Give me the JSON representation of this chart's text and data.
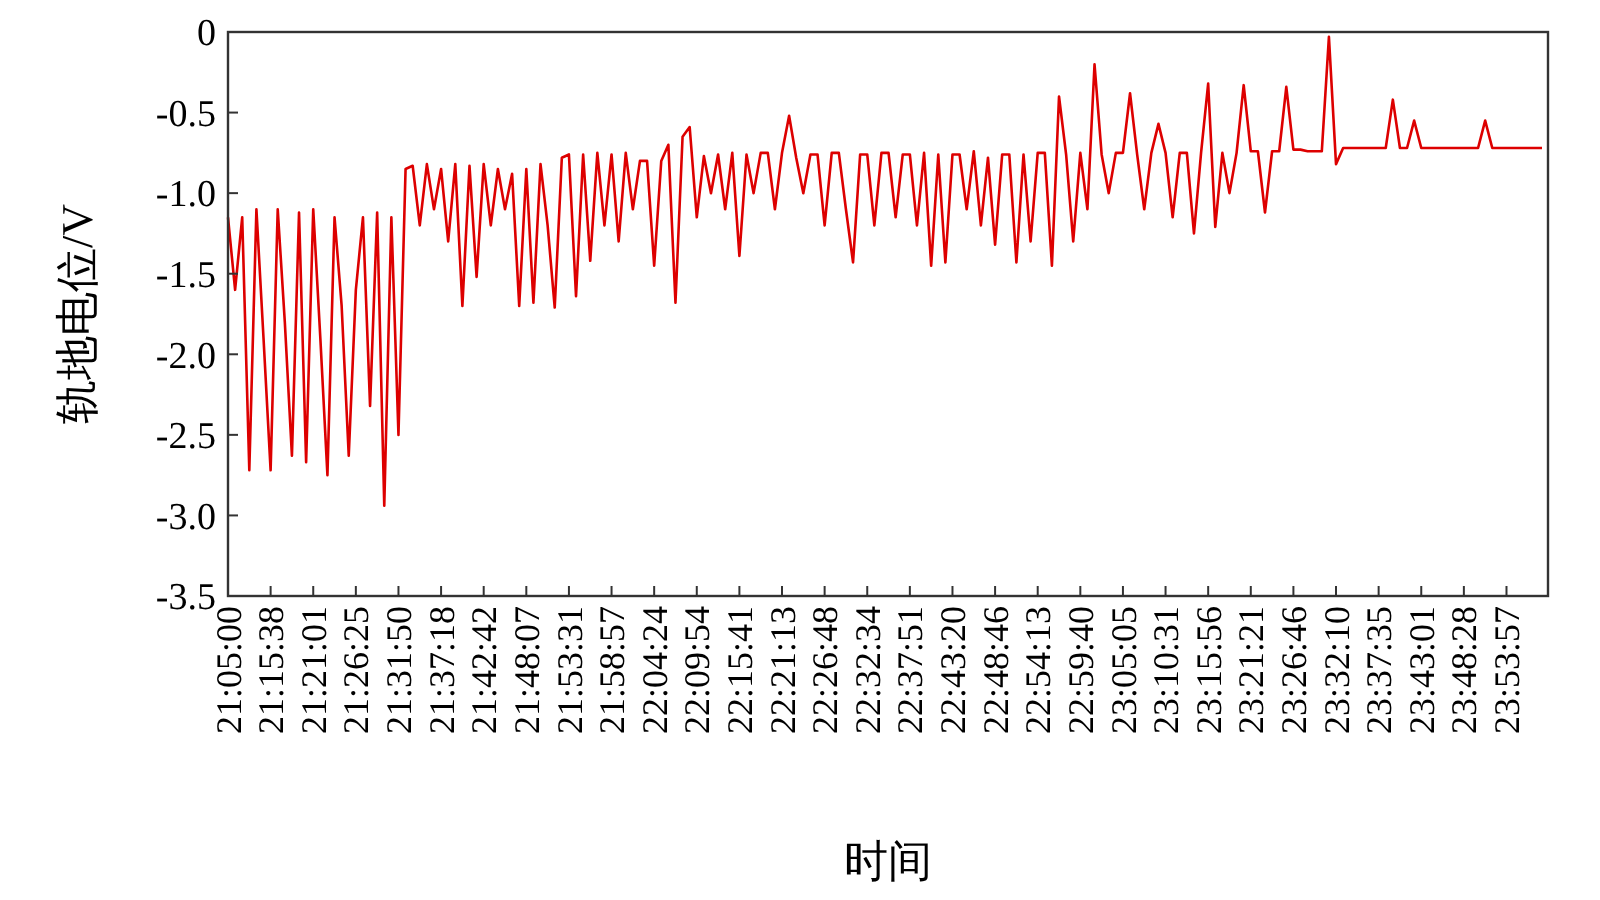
{
  "chart_data": {
    "type": "line",
    "xlabel": "时间",
    "ylabel": "轨地电位/V",
    "grid": false,
    "marker": "none",
    "line_style": "solid",
    "ylim": [
      -3.5,
      0
    ],
    "yticks": [
      0,
      -0.5,
      {
        "value": -1,
        "label": "-1.0"
      },
      -1.5,
      {
        "value": -2,
        "label": "-2.0"
      },
      -2.5,
      {
        "value": -3,
        "label": "-3.0"
      },
      -3.5
    ],
    "categories": [
      "21:05:00",
      null,
      null,
      null,
      null,
      null,
      "21:15:38",
      null,
      null,
      null,
      null,
      null,
      "21:21:01",
      null,
      null,
      null,
      null,
      null,
      "21:26:25",
      null,
      null,
      null,
      null,
      null,
      "21:31:50",
      null,
      null,
      null,
      null,
      null,
      "21:37:18",
      null,
      null,
      null,
      null,
      null,
      "21:42:42",
      null,
      null,
      null,
      null,
      null,
      "21:48:07",
      null,
      null,
      null,
      null,
      null,
      "21:53:31",
      null,
      null,
      null,
      null,
      null,
      "21:58:57",
      null,
      null,
      null,
      null,
      null,
      "22:04:24",
      null,
      null,
      null,
      null,
      null,
      "22:09:54",
      null,
      null,
      null,
      null,
      null,
      "22:15:41",
      null,
      null,
      null,
      null,
      null,
      "22:21:13",
      null,
      null,
      null,
      null,
      null,
      "22:26:48",
      null,
      null,
      null,
      null,
      null,
      "22:32:34",
      null,
      null,
      null,
      null,
      null,
      "22:37:51",
      null,
      null,
      null,
      null,
      null,
      "22:43:20",
      null,
      null,
      null,
      null,
      null,
      "22:48:46",
      null,
      null,
      null,
      null,
      null,
      "22:54:13",
      null,
      null,
      null,
      null,
      null,
      "22:59:40",
      null,
      null,
      null,
      null,
      null,
      "23:05:05",
      null,
      null,
      null,
      null,
      null,
      "23:10:31",
      null,
      null,
      null,
      null,
      null,
      "23:15:56",
      null,
      null,
      null,
      null,
      null,
      "23:21:21",
      null,
      null,
      null,
      null,
      null,
      "23:26:46",
      null,
      null,
      null,
      null,
      null,
      "23:32:10",
      null,
      null,
      null,
      null,
      null,
      "23:37:35",
      null,
      null,
      null,
      null,
      null,
      "23:43:01",
      null,
      null,
      null,
      null,
      null,
      "23:48:28",
      null,
      null,
      null,
      null,
      null,
      "23:53:57",
      null,
      null,
      null,
      null,
      null
    ],
    "series": [
      {
        "color": "#dd0000",
        "values": [
          -1.15,
          -1.6,
          -1.15,
          -2.72,
          -1.1,
          -1.9,
          -2.72,
          -1.1,
          -1.8,
          -2.63,
          -1.12,
          -2.67,
          -1.1,
          -1.9,
          -2.75,
          -1.15,
          -1.7,
          -2.63,
          -1.6,
          -1.15,
          -2.32,
          -1.12,
          -2.94,
          -1.15,
          -2.5,
          -0.85,
          -0.83,
          -1.2,
          -0.82,
          -1.1,
          -0.85,
          -1.3,
          -0.82,
          -1.7,
          -0.83,
          -1.52,
          -0.82,
          -1.2,
          -0.85,
          -1.1,
          -0.88,
          -1.7,
          -0.85,
          -1.68,
          -0.82,
          -1.2,
          -1.71,
          -0.78,
          -0.76,
          -1.64,
          -0.76,
          -1.42,
          -0.75,
          -1.2,
          -0.76,
          -1.3,
          -0.75,
          -1.1,
          -0.8,
          -0.8,
          -1.45,
          -0.8,
          -0.7,
          -1.68,
          -0.65,
          -0.59,
          -1.15,
          -0.77,
          -1.0,
          -0.76,
          -1.1,
          -0.75,
          -1.39,
          -0.76,
          -1.0,
          -0.75,
          -0.75,
          -1.1,
          -0.75,
          -0.52,
          -0.78,
          -1.0,
          -0.76,
          -0.76,
          -1.2,
          -0.75,
          -0.75,
          -1.1,
          -1.43,
          -0.76,
          -0.76,
          -1.2,
          -0.75,
          -0.75,
          -1.15,
          -0.76,
          -0.76,
          -1.2,
          -0.75,
          -1.45,
          -0.76,
          -1.43,
          -0.76,
          -0.76,
          -1.1,
          -0.74,
          -1.2,
          -0.78,
          -1.32,
          -0.76,
          -0.76,
          -1.43,
          -0.76,
          -1.3,
          -0.75,
          -0.75,
          -1.45,
          -0.4,
          -0.76,
          -1.3,
          -0.75,
          -1.1,
          -0.2,
          -0.76,
          -1.0,
          -0.75,
          -0.75,
          -0.38,
          -0.76,
          -1.1,
          -0.75,
          -0.57,
          -0.75,
          -1.15,
          -0.75,
          -0.75,
          -1.25,
          -0.75,
          -0.32,
          -1.21,
          -0.75,
          -1.0,
          -0.75,
          -0.33,
          -0.74,
          -0.74,
          -1.12,
          -0.74,
          -0.74,
          -0.34,
          -0.73,
          -0.73,
          -0.74,
          -0.74,
          -0.74,
          -0.03,
          -0.82,
          -0.72,
          -0.72,
          -0.72,
          -0.72,
          -0.72,
          -0.72,
          -0.72,
          -0.42,
          -0.72,
          -0.72,
          -0.55,
          -0.72,
          -0.72,
          -0.72,
          -0.72,
          -0.72,
          -0.72,
          -0.72,
          -0.72,
          -0.72,
          -0.55,
          -0.72,
          -0.72,
          -0.72,
          -0.72,
          -0.72,
          -0.72,
          -0.72,
          -0.72
        ]
      }
    ]
  }
}
